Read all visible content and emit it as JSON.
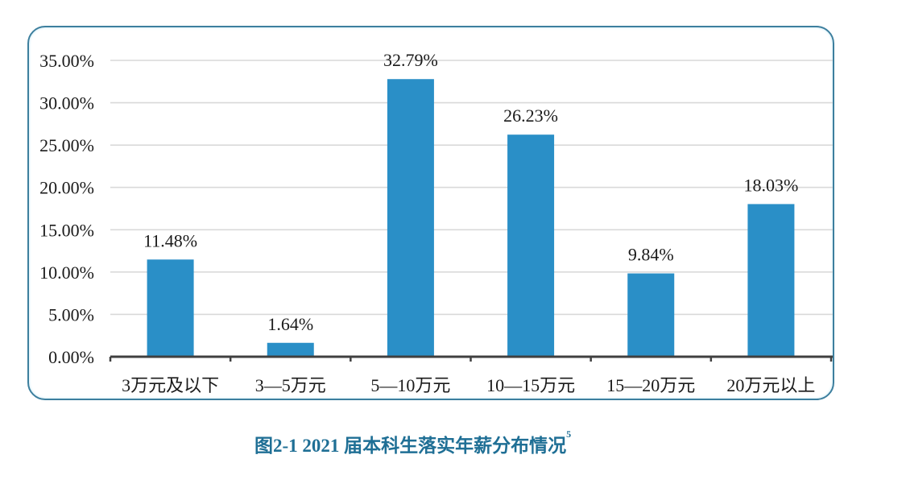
{
  "chart_data": {
    "type": "bar",
    "title": "图2-1   2021 届本科生落实年薪分布情况",
    "title_footnote": "5",
    "xlabel": "",
    "ylabel": "",
    "categories": [
      "3万元及以下",
      "3—5万元",
      "5—10万元",
      "10—15万元",
      "15—20万元",
      "20万元以上"
    ],
    "values": [
      11.48,
      1.64,
      32.79,
      26.23,
      9.84,
      18.03
    ],
    "value_labels": [
      "11.48%",
      "1.64%",
      "32.79%",
      "26.23%",
      "9.84%",
      "18.03%"
    ],
    "ylim": [
      0,
      35
    ],
    "yticks": [
      0,
      5,
      10,
      15,
      20,
      25,
      30,
      35
    ],
    "ytick_labels": [
      "0.00%",
      "5.00%",
      "10.00%",
      "15.00%",
      "20.00%",
      "25.00%",
      "30.00%",
      "35.00%"
    ],
    "grid": true,
    "legend": null,
    "colors": {
      "bar": "#2a8fc7",
      "frame": "#3d7f9e",
      "grid": "#d9d9d9",
      "axis": "#404040",
      "caption": "#1f6f95"
    }
  },
  "caption": {
    "text": "图2-1   2021 届本科生落实年薪分布情况",
    "footnote": "5"
  }
}
